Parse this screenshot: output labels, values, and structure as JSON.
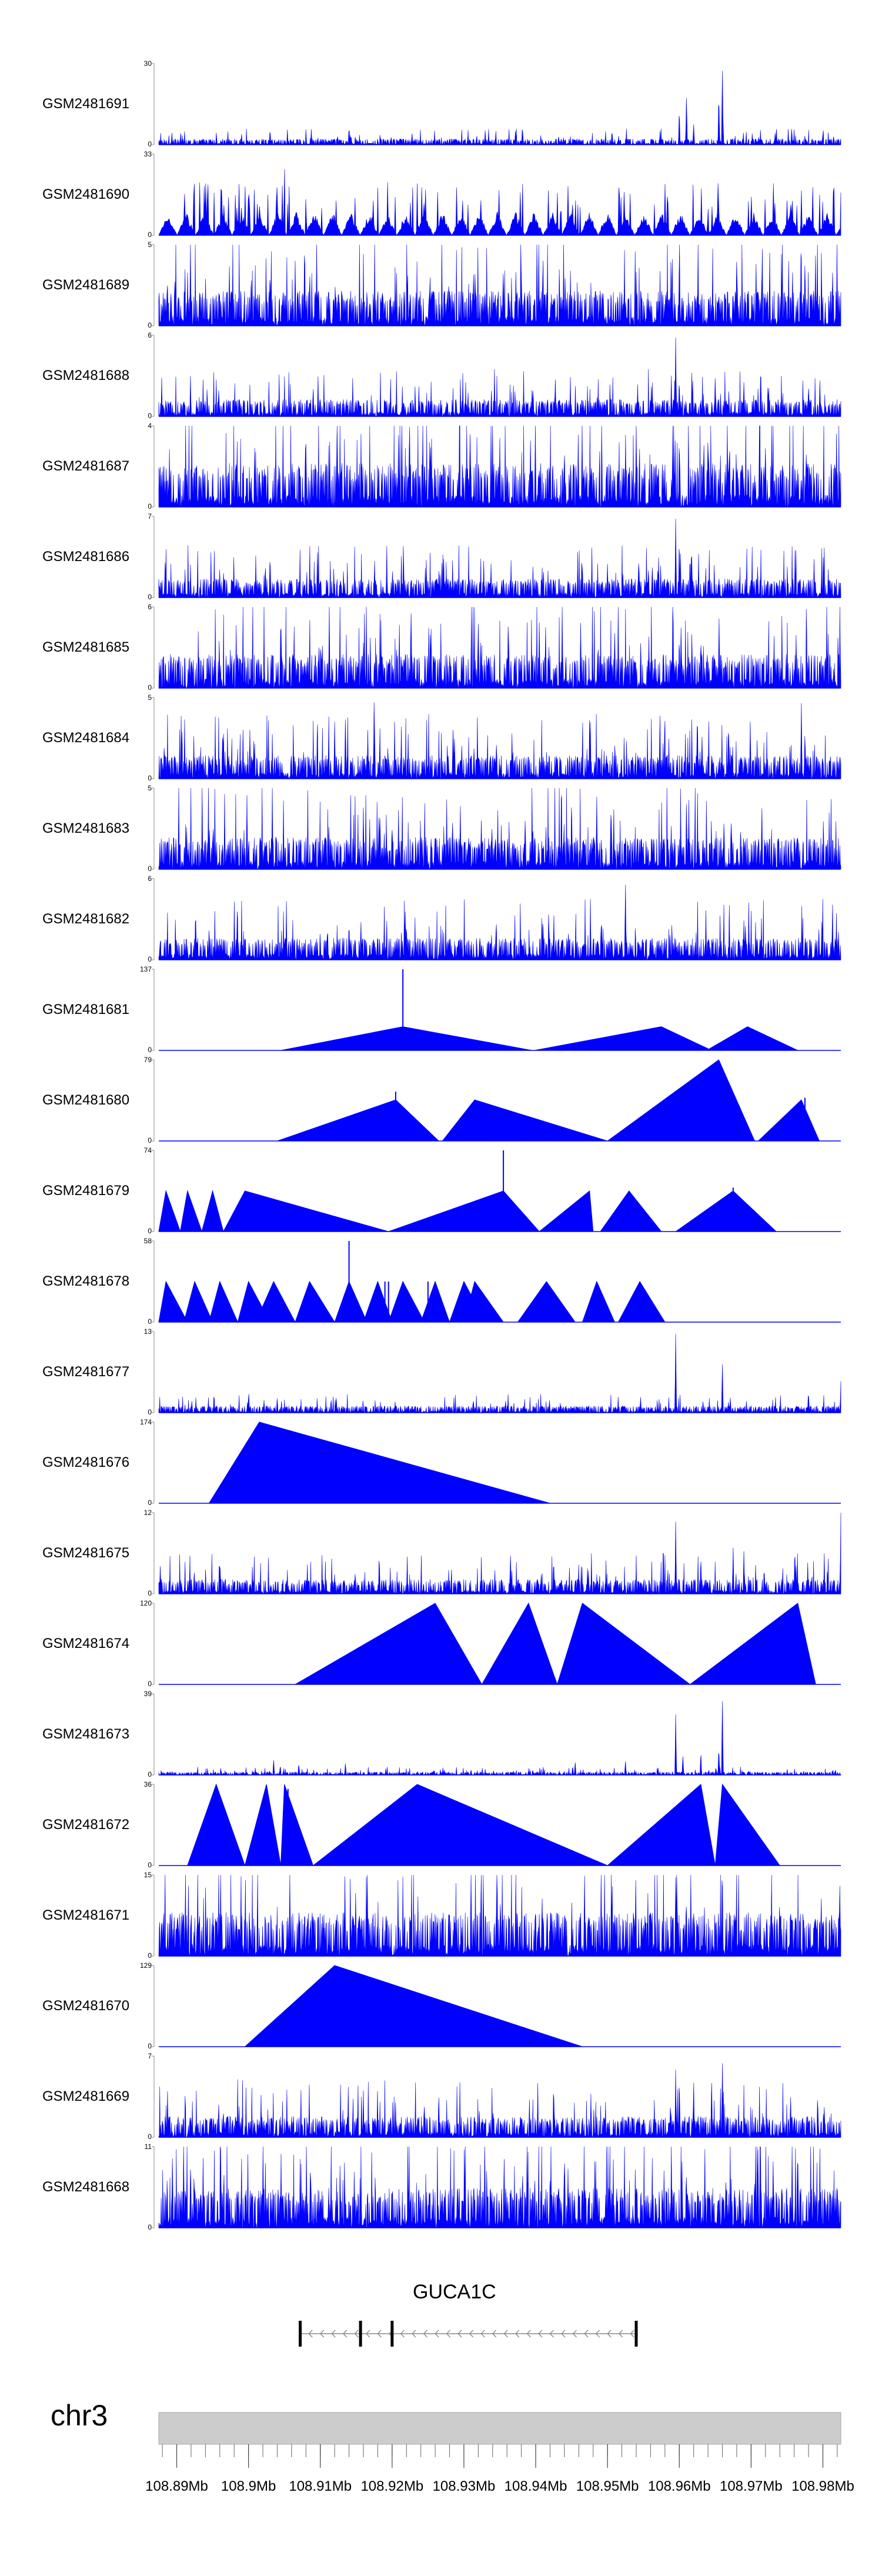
{
  "chart_data": {
    "type": "area",
    "title": "",
    "chromosome": "chr3",
    "x_range": [
      108.8875,
      108.9825
    ],
    "x_unit": "Mb",
    "x_tick_labels": [
      "108.89Mb",
      "108.9Mb",
      "108.91Mb",
      "108.92Mb",
      "108.93Mb",
      "108.94Mb",
      "108.95Mb",
      "108.96Mb",
      "108.97Mb",
      "108.98Mb"
    ],
    "x_tick_values": [
      108.89,
      108.9,
      108.91,
      108.92,
      108.93,
      108.94,
      108.95,
      108.96,
      108.97,
      108.98
    ],
    "gene": {
      "name": "GUCA1C",
      "start": 108.9072,
      "end": 108.954,
      "strand": "-",
      "exons": [
        108.9072,
        108.9156,
        108.92,
        108.954
      ]
    },
    "series": [
      {
        "name": "GSM2481691",
        "ylim": [
          0,
          30
        ],
        "style": "noise",
        "base": 1.2,
        "peaks": [
          [
            108.96,
            14
          ],
          [
            108.961,
            19
          ],
          [
            108.966,
            30
          ],
          [
            108.9655,
            20
          ],
          [
            108.962,
            8
          ],
          [
            108.903,
            6
          ],
          [
            108.914,
            7
          ],
          [
            108.9735,
            5
          ]
        ]
      },
      {
        "name": "GSM2481690",
        "ylim": [
          0,
          33
        ],
        "style": "coarse",
        "base": 9,
        "peaks": [
          [
            108.905,
            33
          ],
          [
            108.908,
            18
          ],
          [
            108.9235,
            22
          ],
          [
            108.9445,
            20
          ],
          [
            108.9435,
            17
          ],
          [
            108.958,
            23
          ],
          [
            108.964,
            14
          ],
          [
            108.977,
            20
          ],
          [
            108.9815,
            33
          ]
        ]
      },
      {
        "name": "GSM2481689",
        "ylim": [
          0,
          5
        ],
        "style": "noise",
        "base": 1.2,
        "peaks": [
          [
            108.959,
            5
          ],
          [
            108.96,
            4.2
          ],
          [
            108.968,
            4.8
          ],
          [
            108.9775,
            4.5
          ],
          [
            108.9065,
            4
          ],
          [
            108.903,
            3.7
          ],
          [
            108.938,
            3.8
          ],
          [
            108.941,
            3.9
          ]
        ]
      },
      {
        "name": "GSM2481688",
        "ylim": [
          0,
          6
        ],
        "style": "noise",
        "base": 0.7,
        "peaks": [
          [
            108.9595,
            6
          ],
          [
            108.9595,
            5
          ],
          [
            108.965,
            3
          ],
          [
            108.96,
            3
          ],
          [
            108.969,
            2.6
          ],
          [
            108.978,
            2.5
          ],
          [
            108.909,
            2.2
          ]
        ]
      },
      {
        "name": "GSM2481687",
        "ylim": [
          0,
          4
        ],
        "style": "noise",
        "base": 1.2,
        "peaks": [
          [
            108.954,
            4
          ],
          [
            108.964,
            4
          ],
          [
            108.96,
            3.8
          ],
          [
            108.967,
            3.6
          ],
          [
            108.972,
            3.4
          ],
          [
            108.908,
            3.3
          ],
          [
            108.944,
            3.2
          ],
          [
            108.935,
            3.4
          ]
        ]
      },
      {
        "name": "GSM2481686",
        "ylim": [
          0,
          7
        ],
        "style": "noise",
        "base": 0.9,
        "peaks": [
          [
            108.9595,
            7
          ],
          [
            108.96,
            5.5
          ],
          [
            108.9615,
            4
          ],
          [
            108.903,
            4
          ],
          [
            108.9465,
            3
          ],
          [
            108.95,
            3
          ],
          [
            108.957,
            2.6
          ]
        ]
      },
      {
        "name": "GSM2481685",
        "ylim": [
          0,
          6
        ],
        "style": "noise",
        "base": 1.4,
        "peaks": [
          [
            108.9045,
            6
          ],
          [
            108.932,
            5.4
          ],
          [
            108.9405,
            5
          ],
          [
            108.951,
            4.6
          ],
          [
            108.96,
            4.2
          ],
          [
            108.963,
            4
          ],
          [
            108.9515,
            4.6
          ]
        ]
      },
      {
        "name": "GSM2481684",
        "ylim": [
          0,
          5
        ],
        "style": "noise",
        "base": 0.8,
        "peaks": [
          [
            108.9175,
            5
          ],
          [
            108.9135,
            4
          ],
          [
            108.912,
            3.6
          ],
          [
            108.9285,
            3.4
          ],
          [
            108.9625,
            3.8
          ],
          [
            108.977,
            4.8
          ],
          [
            108.9775,
            3.2
          ]
        ]
      },
      {
        "name": "GSM2481683",
        "ylim": [
          0,
          5
        ],
        "style": "noise",
        "base": 1.1,
        "peaks": [
          [
            108.945,
            4.8
          ],
          [
            108.9485,
            4.6
          ],
          [
            108.9505,
            4.4
          ],
          [
            108.961,
            4.4
          ],
          [
            108.9715,
            4
          ],
          [
            108.9295,
            4
          ],
          [
            108.916,
            3.8
          ]
        ]
      },
      {
        "name": "GSM2481682",
        "ylim": [
          0,
          6
        ],
        "style": "noise",
        "base": 0.9,
        "peaks": [
          [
            108.9525,
            5.9
          ],
          [
            108.941,
            3.5
          ],
          [
            108.9345,
            3.3
          ],
          [
            108.969,
            3
          ],
          [
            108.914,
            3
          ],
          [
            108.922,
            3
          ]
        ]
      },
      {
        "name": "GSM2481681",
        "ylim": [
          0,
          137
        ],
        "style": "triangles",
        "tri": [
          [
            108.9045,
            108.9215,
            108.9395,
            40
          ],
          [
            108.9398,
            108.9575,
            108.9645,
            40
          ],
          [
            108.9638,
            108.9695,
            108.9765,
            40
          ]
        ],
        "spikes": [
          [
            108.9215,
            137
          ]
        ]
      },
      {
        "name": "GSM2481680",
        "ylim": [
          0,
          79
        ],
        "style": "triangles",
        "tri": [
          [
            108.904,
            108.9205,
            108.9265,
            40
          ],
          [
            108.927,
            108.9315,
            108.95,
            40
          ],
          [
            108.95,
            108.9655,
            108.9705,
            79
          ],
          [
            108.971,
            108.977,
            108.9795,
            40
          ]
        ],
        "spikes": [
          [
            108.9205,
            48
          ],
          [
            108.9775,
            42
          ]
        ]
      },
      {
        "name": "GSM2481679",
        "ylim": [
          0,
          74
        ],
        "style": "triangles",
        "tri": [
          [
            108.8875,
            108.8885,
            108.8905,
            37
          ],
          [
            108.8905,
            108.8915,
            108.8935,
            37
          ],
          [
            108.8935,
            108.895,
            108.8965,
            37
          ],
          [
            108.8965,
            108.8995,
            108.9195,
            37
          ],
          [
            108.9195,
            108.9355,
            108.9405,
            37
          ],
          [
            108.9405,
            108.9475,
            108.948,
            37
          ],
          [
            108.949,
            108.953,
            108.9575,
            37
          ],
          [
            108.9595,
            108.9675,
            108.9735,
            37
          ]
        ],
        "spikes": [
          [
            108.9355,
            74
          ],
          [
            108.9675,
            40
          ]
        ]
      },
      {
        "name": "GSM2481678",
        "ylim": [
          0,
          58
        ],
        "style": "triangles",
        "tri": [
          [
            108.8875,
            108.8885,
            108.8915,
            29
          ],
          [
            108.891,
            108.8925,
            108.895,
            29
          ],
          [
            108.8945,
            108.896,
            108.8985,
            29
          ],
          [
            108.8985,
            108.9,
            108.903,
            29
          ],
          [
            108.901,
            108.9035,
            108.9065,
            29
          ],
          [
            108.9065,
            108.9085,
            108.912,
            29
          ],
          [
            108.912,
            108.914,
            108.9165,
            29
          ],
          [
            108.916,
            108.918,
            108.92,
            29
          ],
          [
            108.9195,
            108.9215,
            108.9245,
            29
          ],
          [
            108.924,
            108.926,
            108.928,
            29
          ],
          [
            108.928,
            108.93,
            108.933,
            29
          ],
          [
            108.93,
            108.9315,
            108.9355,
            29
          ],
          [
            108.9375,
            108.9415,
            108.9455,
            29
          ],
          [
            108.9465,
            108.9485,
            108.951,
            29
          ],
          [
            108.9515,
            108.9545,
            108.958,
            29
          ]
        ],
        "spikes": [
          [
            108.914,
            58
          ],
          [
            108.925,
            29
          ],
          [
            108.9195,
            29
          ],
          [
            108.919,
            29
          ]
        ]
      },
      {
        "name": "GSM2481677",
        "ylim": [
          0,
          13
        ],
        "style": "noise",
        "base": 0.6,
        "peaks": [
          [
            108.9595,
            13
          ],
          [
            108.966,
            8.5
          ],
          [
            108.9825,
            5
          ],
          [
            108.9595,
            6
          ],
          [
            108.9,
            2.5
          ],
          [
            108.904,
            2.5
          ],
          [
            108.9115,
            2.4
          ]
        ]
      },
      {
        "name": "GSM2481676",
        "ylim": [
          0,
          174
        ],
        "style": "triangles",
        "tri": [
          [
            108.8945,
            108.9015,
            108.942,
            174
          ]
        ],
        "spikes": []
      },
      {
        "name": "GSM2481675",
        "ylim": [
          0,
          12
        ],
        "style": "noise",
        "base": 1.2,
        "peaks": [
          [
            108.9595,
            11
          ],
          [
            108.9825,
            12
          ],
          [
            108.969,
            6.5
          ],
          [
            108.963,
            6
          ],
          [
            108.9365,
            6
          ],
          [
            108.9425,
            5.5
          ],
          [
            108.9675,
            7
          ]
        ]
      },
      {
        "name": "GSM2481674",
        "ylim": [
          0,
          120
        ],
        "style": "triangles",
        "tri": [
          [
            108.9065,
            108.926,
            108.9325,
            120
          ],
          [
            108.9325,
            108.939,
            108.943,
            120
          ],
          [
            108.943,
            108.9465,
            108.9615,
            120
          ],
          [
            108.9615,
            108.9765,
            108.979,
            120
          ]
        ],
        "spikes": []
      },
      {
        "name": "GSM2481673",
        "ylim": [
          0,
          39
        ],
        "style": "noise",
        "base": 0.8,
        "peaks": [
          [
            108.9595,
            30
          ],
          [
            108.966,
            39
          ],
          [
            108.963,
            12
          ],
          [
            108.9655,
            14
          ],
          [
            108.9035,
            8
          ],
          [
            108.907,
            6
          ],
          [
            108.9135,
            6
          ],
          [
            108.9455,
            7
          ],
          [
            108.9525,
            7
          ],
          [
            108.9605,
            10
          ]
        ]
      },
      {
        "name": "GSM2481672",
        "ylim": [
          0,
          36
        ],
        "style": "triangles",
        "tri": [
          [
            108.8915,
            108.8955,
            108.8995,
            36
          ],
          [
            108.8995,
            108.9025,
            108.9045,
            36
          ],
          [
            108.9045,
            108.905,
            108.909,
            36
          ],
          [
            108.909,
            108.9235,
            108.95,
            36
          ],
          [
            108.95,
            108.963,
            108.965,
            36
          ],
          [
            108.965,
            108.966,
            108.974,
            36
          ]
        ],
        "spikes": [
          [
            108.9055,
            34
          ]
        ]
      },
      {
        "name": "GSM2481671",
        "ylim": [
          0,
          15
        ],
        "style": "noise",
        "base": 4.5,
        "peaks": [
          [
            108.9595,
            15
          ],
          [
            108.966,
            14
          ],
          [
            108.9635,
            9
          ],
          [
            108.961,
            10
          ],
          [
            108.9255,
            8
          ],
          [
            108.9405,
            8
          ],
          [
            108.974,
            8
          ]
        ]
      },
      {
        "name": "GSM2481670",
        "ylim": [
          0,
          129
        ],
        "style": "triangles",
        "tri": [
          [
            108.8995,
            108.912,
            108.9465,
            129
          ]
        ],
        "spikes": []
      },
      {
        "name": "GSM2481669",
        "ylim": [
          0,
          7
        ],
        "style": "noise",
        "base": 1.0,
        "peaks": [
          [
            108.966,
            7
          ],
          [
            108.9595,
            6
          ],
          [
            108.96,
            5.6
          ],
          [
            108.962,
            5
          ],
          [
            108.9645,
            5.5
          ],
          [
            108.9265,
            4
          ],
          [
            108.9755,
            3.8
          ]
        ]
      },
      {
        "name": "GSM2481668",
        "ylim": [
          0,
          11
        ],
        "style": "noise",
        "base": 3.0,
        "peaks": [
          [
            108.944,
            11
          ],
          [
            108.9445,
            8
          ],
          [
            108.942,
            7
          ],
          [
            108.9465,
            7
          ],
          [
            108.961,
            7.5
          ],
          [
            108.9665,
            7
          ],
          [
            108.9705,
            6.5
          ]
        ]
      }
    ]
  }
}
